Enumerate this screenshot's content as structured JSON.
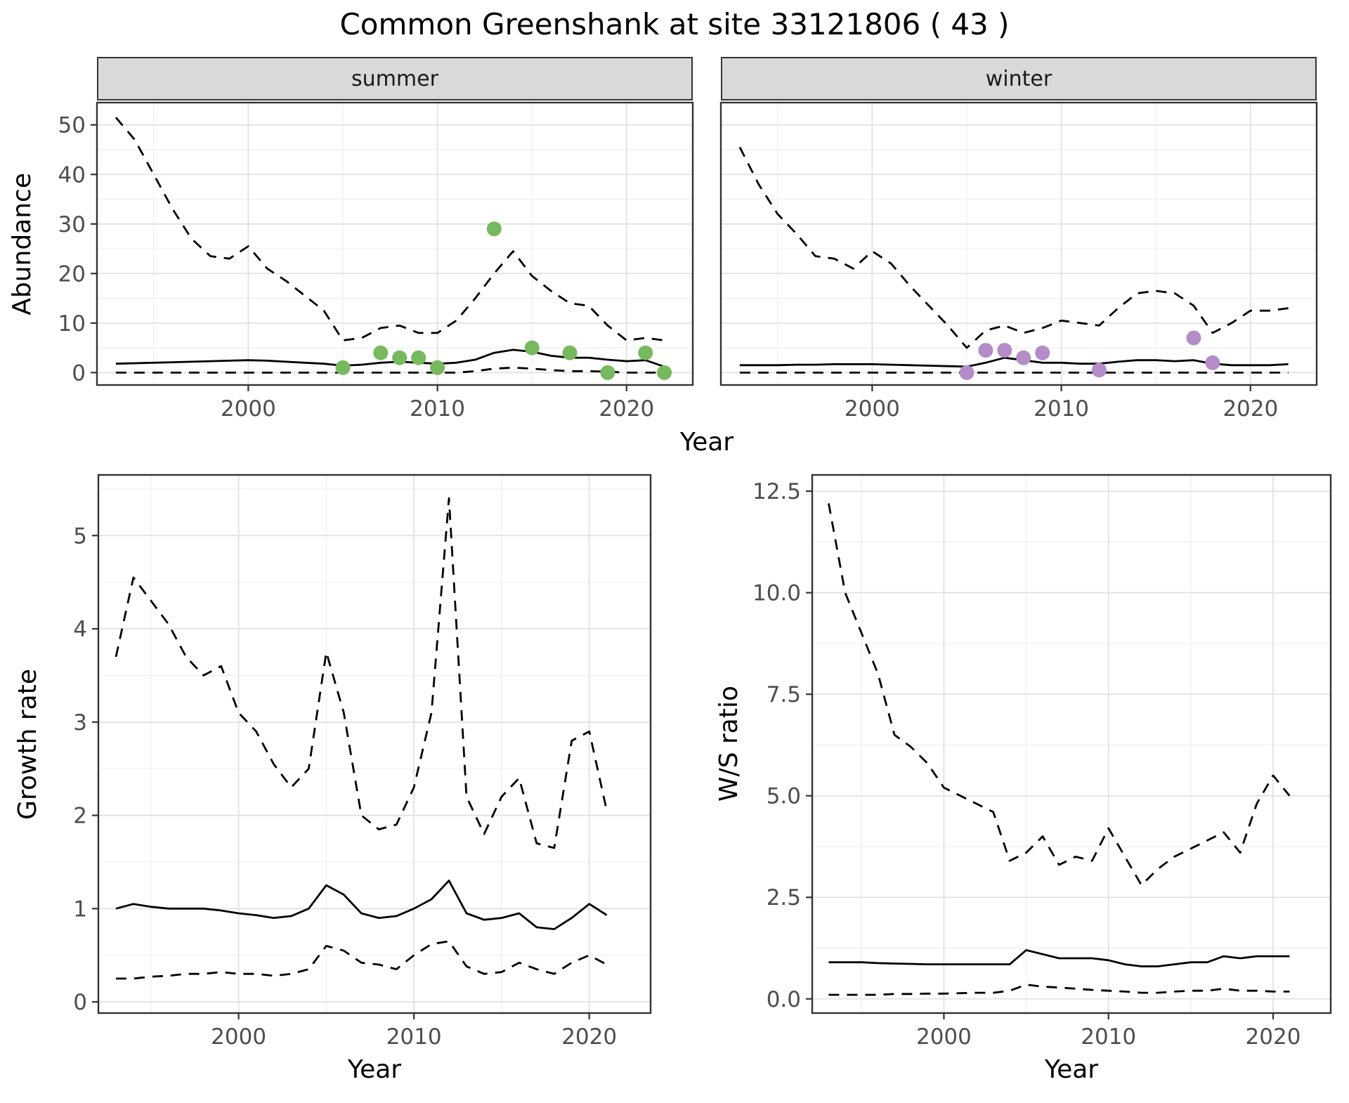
{
  "page": {
    "title": "Common Greenshank at site 33121806 ( 43 )"
  },
  "style": {
    "panel_bg": "#ffffff",
    "grid_major": "#e2e2e2",
    "grid_minor": "#efefef",
    "border": "#333333",
    "tick": "#333333",
    "tick_text": "#4d4d4d",
    "line": "#000000",
    "dash": "15 11",
    "strip_bg": "#d9d9d9",
    "summer_point_color": "#77b95e",
    "winter_point_color": "#b48cc8"
  },
  "chart_data": [
    {
      "id": "abundance",
      "type": "line",
      "title": "",
      "ylabel": "Abundance",
      "xlabel": "Year",
      "xlim": [
        1992,
        2023.5
      ],
      "ylim": [
        -2.5,
        54.5
      ],
      "xticks": [
        2000,
        2010,
        2020
      ],
      "xticks_minor": [
        1995,
        2005,
        2015
      ],
      "yticks": [
        0,
        10,
        20,
        30,
        40,
        50
      ],
      "yticks_minor": [
        5,
        15,
        25,
        35,
        45
      ],
      "grid": true,
      "legend": "none",
      "facets": [
        {
          "label": "summer",
          "point_color": "#77b95e",
          "years": [
            1993,
            1994,
            1995,
            1996,
            1997,
            1998,
            1999,
            2000,
            2001,
            2002,
            2003,
            2004,
            2005,
            2006,
            2007,
            2008,
            2009,
            2010,
            2011,
            2012,
            2013,
            2014,
            2015,
            2016,
            2017,
            2018,
            2019,
            2020,
            2021,
            2022
          ],
          "upper": [
            51.5,
            47,
            40,
            33,
            27,
            23.5,
            23,
            25.5,
            21,
            18.5,
            15.5,
            12.5,
            6.5,
            7,
            9,
            9.5,
            8,
            8,
            10.5,
            15,
            20,
            24.5,
            19.5,
            16.5,
            14,
            13.5,
            9.5,
            6.5,
            7,
            6.5
          ],
          "median": [
            1.8,
            1.9,
            2,
            2.1,
            2.2,
            2.3,
            2.4,
            2.5,
            2.4,
            2.2,
            2,
            1.8,
            1.4,
            1.6,
            2,
            2.2,
            2,
            1.8,
            2,
            2.6,
            4,
            4.6,
            4.2,
            3.4,
            3,
            3,
            2.6,
            2.3,
            2.5,
            1.2
          ],
          "lower": [
            0,
            0,
            0,
            0,
            0,
            0,
            0,
            0,
            0,
            0,
            0,
            0,
            0,
            0,
            0,
            0,
            0,
            0,
            0,
            0.3,
            0.8,
            1,
            0.8,
            0.5,
            0.3,
            0.3,
            0.2,
            0,
            0,
            0
          ],
          "points": {
            "x": [
              2005,
              2007,
              2008,
              2009,
              2010,
              2013,
              2015,
              2017,
              2019,
              2021,
              2022
            ],
            "y": [
              1,
              4,
              3,
              3,
              1,
              29,
              5,
              4,
              0,
              4,
              0
            ]
          }
        },
        {
          "label": "winter",
          "point_color": "#b48cc8",
          "years": [
            1993,
            1994,
            1995,
            1996,
            1997,
            1998,
            1999,
            2000,
            2001,
            2002,
            2003,
            2004,
            2005,
            2006,
            2007,
            2008,
            2009,
            2010,
            2011,
            2012,
            2013,
            2014,
            2015,
            2016,
            2017,
            2018,
            2019,
            2020,
            2021,
            2022
          ],
          "upper": [
            45.5,
            38,
            32,
            28,
            23.5,
            23,
            21,
            24.5,
            22,
            17.5,
            13.5,
            9.5,
            5,
            8.5,
            9.5,
            8,
            9,
            10.5,
            10,
            9.5,
            13,
            16,
            16.5,
            16,
            13.5,
            8,
            10,
            12.5,
            12.5,
            13
          ],
          "median": [
            1.5,
            1.5,
            1.5,
            1.6,
            1.6,
            1.7,
            1.7,
            1.7,
            1.6,
            1.5,
            1.4,
            1.3,
            1.2,
            2,
            3,
            2.5,
            2,
            2,
            1.8,
            1.8,
            2.2,
            2.5,
            2.5,
            2.3,
            2.5,
            1.8,
            1.5,
            1.5,
            1.5,
            1.7
          ],
          "lower": [
            0,
            0,
            0,
            0,
            0,
            0,
            0,
            0,
            0,
            0,
            0,
            0,
            0,
            0,
            0,
            0,
            0,
            0,
            0,
            0,
            0,
            0,
            0,
            0,
            0,
            0,
            0,
            0,
            0,
            0
          ],
          "points": {
            "x": [
              2005,
              2006,
              2007,
              2008,
              2009,
              2012,
              2017,
              2018
            ],
            "y": [
              0,
              4.5,
              4.5,
              3,
              4,
              0.5,
              7,
              2
            ]
          }
        }
      ]
    },
    {
      "id": "growth_rate",
      "type": "line",
      "title": "",
      "ylabel": "Growth rate",
      "xlabel": "Year",
      "xlim": [
        1992,
        2023.5
      ],
      "ylim": [
        -0.12,
        5.65
      ],
      "xticks": [
        2000,
        2010,
        2020
      ],
      "xticks_minor": [
        1995,
        2005,
        2015
      ],
      "yticks": [
        0,
        1,
        2,
        3,
        4,
        5
      ],
      "yticks_minor": [
        0.5,
        1.5,
        2.5,
        3.5,
        4.5,
        5.5
      ],
      "grid": true,
      "legend": "none",
      "years": [
        1993,
        1994,
        1995,
        1996,
        1997,
        1998,
        1999,
        2000,
        2001,
        2002,
        2003,
        2004,
        2005,
        2006,
        2007,
        2008,
        2009,
        2010,
        2011,
        2012,
        2013,
        2014,
        2015,
        2016,
        2017,
        2018,
        2019,
        2020,
        2021
      ],
      "upper": [
        3.7,
        4.55,
        4.3,
        4.05,
        3.7,
        3.5,
        3.6,
        3.1,
        2.9,
        2.55,
        2.3,
        2.5,
        3.75,
        3.1,
        2.0,
        1.85,
        1.9,
        2.3,
        3.1,
        5.4,
        2.2,
        1.8,
        2.2,
        2.4,
        1.7,
        1.65,
        2.8,
        2.9,
        2.05
      ],
      "median": [
        1.0,
        1.05,
        1.02,
        1.0,
        1.0,
        1.0,
        0.98,
        0.95,
        0.93,
        0.9,
        0.92,
        1.0,
        1.25,
        1.15,
        0.95,
        0.9,
        0.92,
        1.0,
        1.1,
        1.3,
        0.95,
        0.88,
        0.9,
        0.95,
        0.8,
        0.78,
        0.9,
        1.05,
        0.93
      ],
      "lower": [
        0.25,
        0.25,
        0.27,
        0.28,
        0.3,
        0.3,
        0.32,
        0.3,
        0.3,
        0.28,
        0.3,
        0.35,
        0.6,
        0.55,
        0.42,
        0.4,
        0.35,
        0.5,
        0.62,
        0.65,
        0.38,
        0.3,
        0.32,
        0.42,
        0.35,
        0.3,
        0.42,
        0.5,
        0.4
      ]
    },
    {
      "id": "ws_ratio",
      "type": "line",
      "title": "",
      "ylabel": "W/S ratio",
      "xlabel": "Year",
      "xlim": [
        1992,
        2023.5
      ],
      "ylim": [
        -0.35,
        12.9
      ],
      "xticks": [
        2000,
        2010,
        2020
      ],
      "xticks_minor": [
        1995,
        2005,
        2015
      ],
      "yticks": [
        0,
        2.5,
        5,
        7.5,
        10,
        12.5
      ],
      "ytick_labels": [
        "0.0",
        "2.5",
        "5.0",
        "7.5",
        "10.0",
        "12.5"
      ],
      "yticks_minor": [
        1.25,
        3.75,
        6.25,
        8.75,
        11.25
      ],
      "grid": true,
      "legend": "none",
      "years": [
        1993,
        1994,
        1995,
        1996,
        1997,
        1998,
        1999,
        2000,
        2001,
        2002,
        2003,
        2004,
        2005,
        2006,
        2007,
        2008,
        2009,
        2010,
        2011,
        2012,
        2013,
        2014,
        2015,
        2016,
        2017,
        2018,
        2019,
        2020,
        2021
      ],
      "upper": [
        12.2,
        10.0,
        9.0,
        8.0,
        6.5,
        6.2,
        5.8,
        5.2,
        5.0,
        4.8,
        4.6,
        3.4,
        3.6,
        4.0,
        3.3,
        3.5,
        3.4,
        4.2,
        3.5,
        2.8,
        3.2,
        3.5,
        3.7,
        3.9,
        4.1,
        3.6,
        4.8,
        5.5,
        5.0
      ],
      "median": [
        0.9,
        0.9,
        0.9,
        0.88,
        0.87,
        0.86,
        0.85,
        0.85,
        0.85,
        0.85,
        0.85,
        0.85,
        1.2,
        1.1,
        1.0,
        1.0,
        1.0,
        0.95,
        0.85,
        0.8,
        0.8,
        0.85,
        0.9,
        0.9,
        1.05,
        1.0,
        1.05,
        1.05,
        1.05
      ],
      "lower": [
        0.1,
        0.1,
        0.1,
        0.1,
        0.12,
        0.12,
        0.13,
        0.13,
        0.14,
        0.15,
        0.15,
        0.2,
        0.35,
        0.3,
        0.28,
        0.25,
        0.22,
        0.2,
        0.18,
        0.15,
        0.15,
        0.18,
        0.2,
        0.2,
        0.25,
        0.2,
        0.2,
        0.18,
        0.18
      ]
    }
  ]
}
